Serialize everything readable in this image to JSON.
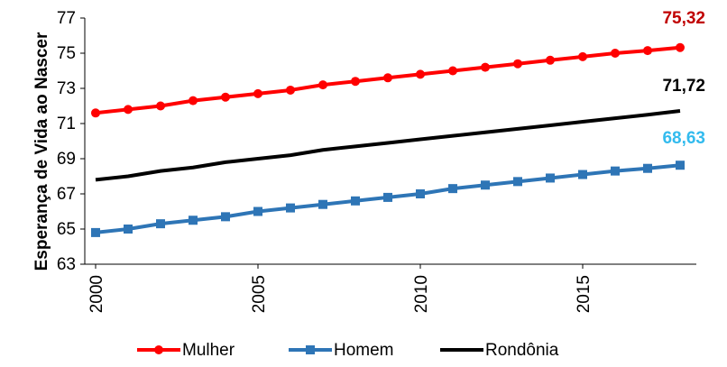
{
  "chart_data": {
    "type": "line",
    "ylabel": "Esperança de Vida ao Nascer",
    "xlabel": "",
    "ylim": [
      63,
      77
    ],
    "yticks": [
      "63",
      "65",
      "67",
      "69",
      "71",
      "73",
      "75",
      "77"
    ],
    "xlim": [
      2000,
      2018
    ],
    "xticks": [
      "2000",
      "2005",
      "2010",
      "2015"
    ],
    "grid": false,
    "legend_position": "bottom",
    "x": [
      2000,
      2001,
      2002,
      2003,
      2004,
      2005,
      2006,
      2007,
      2008,
      2009,
      2010,
      2011,
      2012,
      2013,
      2014,
      2015,
      2016,
      2017,
      2018
    ],
    "series": [
      {
        "name": "Mulher",
        "color": "#ff0000",
        "marker": "circle",
        "values": [
          71.6,
          71.8,
          72.0,
          72.3,
          72.5,
          72.7,
          72.9,
          73.2,
          73.4,
          73.6,
          73.8,
          74.0,
          74.2,
          74.4,
          74.6,
          74.8,
          75.0,
          75.15,
          75.32
        ],
        "end_label": "75,32",
        "end_label_color": "#c00000"
      },
      {
        "name": "Homem",
        "color": "#2e75b6",
        "marker": "square",
        "values": [
          64.8,
          65.0,
          65.3,
          65.5,
          65.7,
          66.0,
          66.2,
          66.4,
          66.6,
          66.8,
          67.0,
          67.3,
          67.5,
          67.7,
          67.9,
          68.1,
          68.3,
          68.45,
          68.63
        ],
        "end_label": "68,63",
        "end_label_color": "#33bbee"
      },
      {
        "name": "Rondônia",
        "color": "#000000",
        "marker": "none",
        "values": [
          67.8,
          68.0,
          68.3,
          68.5,
          68.8,
          69.0,
          69.2,
          69.5,
          69.7,
          69.9,
          70.1,
          70.3,
          70.5,
          70.7,
          70.9,
          71.1,
          71.3,
          71.5,
          71.72
        ],
        "end_label": "71,72",
        "end_label_color": "#000000"
      }
    ]
  }
}
